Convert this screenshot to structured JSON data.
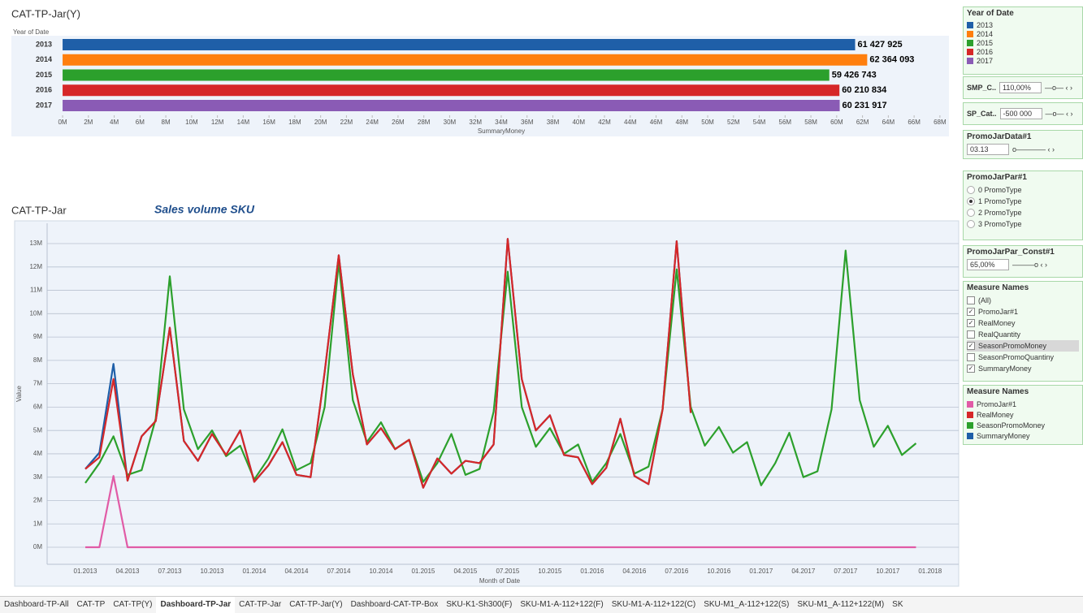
{
  "chart_data": [
    {
      "type": "bar",
      "title": "CAT-TP-Jar(Y)",
      "ylabel": "Year of Date",
      "xlabel": "SummaryMoney",
      "categories": [
        "2013",
        "2014",
        "2015",
        "2016",
        "2017"
      ],
      "values": [
        61427925,
        62364093,
        59426743,
        60210834,
        60231917
      ],
      "value_labels": [
        "61 427 925",
        "62 364 093",
        "59 426 743",
        "60 210 834",
        "60 231 917"
      ],
      "colors": [
        "#1f5fa8",
        "#ff7f0e",
        "#2ca02c",
        "#d62728",
        "#8a5bb5"
      ],
      "xlim": [
        -570000,
        68700000
      ],
      "xticks": [
        {
          "value": 0,
          "label": "0M"
        },
        {
          "value": 2000000,
          "label": "2M"
        },
        {
          "value": 4000000,
          "label": "4M"
        },
        {
          "value": 6000000,
          "label": "6M"
        },
        {
          "value": 8000000,
          "label": "8M"
        },
        {
          "value": 10000000,
          "label": "10M"
        },
        {
          "value": 12000000,
          "label": "12M"
        },
        {
          "value": 14000000,
          "label": "14M"
        },
        {
          "value": 16000000,
          "label": "16M"
        },
        {
          "value": 18000000,
          "label": "18M"
        },
        {
          "value": 20000000,
          "label": "20M"
        },
        {
          "value": 22000000,
          "label": "22M"
        },
        {
          "value": 24000000,
          "label": "24M"
        },
        {
          "value": 26000000,
          "label": "26M"
        },
        {
          "value": 28000000,
          "label": "28M"
        },
        {
          "value": 30000000,
          "label": "30M"
        },
        {
          "value": 32000000,
          "label": "32M"
        },
        {
          "value": 34000000,
          "label": "34M"
        },
        {
          "value": 36000000,
          "label": "36M"
        },
        {
          "value": 38000000,
          "label": "38M"
        },
        {
          "value": 40000000,
          "label": "40M"
        },
        {
          "value": 42000000,
          "label": "42M"
        },
        {
          "value": 44000000,
          "label": "44M"
        },
        {
          "value": 46000000,
          "label": "46M"
        },
        {
          "value": 48000000,
          "label": "48M"
        },
        {
          "value": 50000000,
          "label": "50M"
        },
        {
          "value": 52000000,
          "label": "52M"
        },
        {
          "value": 54000000,
          "label": "54M"
        },
        {
          "value": 56000000,
          "label": "56M"
        },
        {
          "value": 58000000,
          "label": "58M"
        },
        {
          "value": 60000000,
          "label": "60M"
        },
        {
          "value": 62000000,
          "label": "62M"
        },
        {
          "value": 64000000,
          "label": "64M"
        },
        {
          "value": 66000000,
          "label": "66M"
        },
        {
          "value": 68000000,
          "label": "68M"
        }
      ]
    },
    {
      "type": "line",
      "title": "CAT-TP-Jar",
      "subtitle": "Sales volume SKU",
      "ylabel": "Value",
      "xlabel": "Month of Date",
      "categories": [
        "01.2013",
        null,
        null,
        "04.2013",
        null,
        null,
        "07.2013",
        null,
        null,
        "10.2013",
        null,
        null,
        "01.2014",
        null,
        null,
        "04.2014",
        null,
        null,
        "07.2014",
        null,
        null,
        "10.2014",
        null,
        null,
        "01.2015",
        null,
        null,
        "04.2015",
        null,
        null,
        "07.2015",
        null,
        null,
        "10.2015",
        null,
        null,
        "01.2016",
        null,
        null,
        "04.2016",
        null,
        null,
        "07.2016",
        null,
        null,
        "10.2016",
        null,
        null,
        "01.2017",
        null,
        null,
        "04.2017",
        null,
        null,
        "07.2017",
        null,
        null,
        "10.2017",
        null,
        null,
        "01.2018"
      ],
      "ylim": [
        -730000,
        13870000
      ],
      "yticks": [
        {
          "value": 0,
          "label": "0M"
        },
        {
          "value": 1000000,
          "label": "1M"
        },
        {
          "value": 2000000,
          "label": "2M"
        },
        {
          "value": 3000000,
          "label": "3M"
        },
        {
          "value": 4000000,
          "label": "4M"
        },
        {
          "value": 5000000,
          "label": "5M"
        },
        {
          "value": 6000000,
          "label": "6M"
        },
        {
          "value": 7000000,
          "label": "7M"
        },
        {
          "value": 8000000,
          "label": "8M"
        },
        {
          "value": 9000000,
          "label": "9M"
        },
        {
          "value": 10000000,
          "label": "10M"
        },
        {
          "value": 11000000,
          "label": "11M"
        },
        {
          "value": 12000000,
          "label": "12M"
        },
        {
          "value": 13000000,
          "label": "13M"
        }
      ],
      "grid": true,
      "series": [
        {
          "name": "PromoJar#1",
          "color": "#e15ba6",
          "values": [
            0,
            0,
            3050000,
            0,
            0,
            0,
            0,
            0,
            0,
            0,
            0,
            0,
            0,
            0,
            0,
            0,
            0,
            0,
            0,
            0,
            0,
            0,
            0,
            0,
            0,
            0,
            0,
            0,
            0,
            0,
            0,
            0,
            0,
            0,
            0,
            0,
            0,
            0,
            0,
            0,
            0,
            0,
            0,
            0,
            0,
            0,
            0,
            0,
            0,
            0,
            0,
            0,
            0,
            0,
            0,
            0,
            0,
            0,
            0,
            0,
            null
          ]
        },
        {
          "name": "RealMoney",
          "color": "#d62728",
          "values": [
            3350000,
            3850000,
            7200000,
            2850000,
            4750000,
            5400000,
            9400000,
            4550000,
            3700000,
            4850000,
            3950000,
            5000000,
            2800000,
            3500000,
            4500000,
            3100000,
            3000000,
            7500000,
            12500000,
            7400000,
            4400000,
            5100000,
            4200000,
            4600000,
            2550000,
            3800000,
            3150000,
            3700000,
            3600000,
            4400000,
            13200000,
            7200000,
            5000000,
            5650000,
            3950000,
            3850000,
            2700000,
            3400000,
            5500000,
            3050000,
            2700000,
            5900000,
            13100000,
            5750000,
            null,
            null,
            null,
            null,
            null,
            null,
            null,
            null,
            null,
            null,
            null,
            null,
            null,
            null,
            null,
            null,
            null
          ]
        },
        {
          "name": "SeasonPromoMoney",
          "color": "#2ca02c",
          "values": [
            2750000,
            3600000,
            4750000,
            3100000,
            3300000,
            5500000,
            11600000,
            5900000,
            4200000,
            5000000,
            3900000,
            4350000,
            2900000,
            3800000,
            5050000,
            3300000,
            3600000,
            6000000,
            12200000,
            6300000,
            4500000,
            5350000,
            4200000,
            4600000,
            2800000,
            3600000,
            4850000,
            3100000,
            3350000,
            5800000,
            11800000,
            6000000,
            4300000,
            5100000,
            4000000,
            4400000,
            2800000,
            3600000,
            4850000,
            3150000,
            3450000,
            5900000,
            11900000,
            6000000,
            4350000,
            5150000,
            4050000,
            4500000,
            2650000,
            3600000,
            4900000,
            3000000,
            3250000,
            5900000,
            12700000,
            6300000,
            4300000,
            5200000,
            3950000,
            4450000,
            null
          ]
        },
        {
          "name": "SummaryMoney",
          "color": "#1f5fa8",
          "values": [
            3350000,
            4050000,
            7850000,
            2850000,
            4750000,
            5400000,
            9400000,
            4550000,
            3700000,
            4850000,
            3950000,
            5000000,
            2800000,
            3500000,
            4500000,
            3100000,
            3000000,
            7500000,
            12500000,
            7400000,
            4400000,
            5100000,
            4200000,
            4600000,
            2550000,
            3800000,
            3150000,
            3700000,
            3600000,
            4400000,
            13200000,
            7200000,
            5000000,
            5650000,
            3950000,
            3850000,
            2700000,
            3400000,
            5500000,
            3050000,
            2700000,
            5900000,
            13100000,
            5750000,
            null,
            null,
            null,
            null,
            null,
            null,
            null,
            null,
            null,
            null,
            null,
            null,
            null,
            null,
            null,
            null,
            null
          ]
        }
      ]
    }
  ],
  "sidebar": {
    "year_legend_title": "Year of Date",
    "params": [
      {
        "label": "SMP_C..",
        "value": "110,00%"
      },
      {
        "label": "SP_Cat..",
        "value": "-500 000"
      }
    ],
    "promo_data": {
      "title": "PromoJarData#1",
      "value": "03.13"
    },
    "promo_par": {
      "title": "PromoJarPar#1",
      "options": [
        {
          "label": "0 PromoType",
          "checked": false
        },
        {
          "label": "1 PromoType",
          "checked": true
        },
        {
          "label": "2 PromoType",
          "checked": false
        },
        {
          "label": "3 PromoType",
          "checked": false
        }
      ]
    },
    "promo_const": {
      "title": "PromoJarPar_Const#1",
      "value": "65,00%"
    },
    "measure_filter": {
      "title": "Measure Names",
      "items": [
        {
          "label": "(All)",
          "checked": false
        },
        {
          "label": "PromoJar#1",
          "checked": true
        },
        {
          "label": "RealMoney",
          "checked": true
        },
        {
          "label": "RealQuantity",
          "checked": false
        },
        {
          "label": "SeasonPromoMoney",
          "checked": true
        },
        {
          "label": "SeasonPromoQuantiny",
          "checked": false
        },
        {
          "label": "SummaryMoney",
          "checked": true
        }
      ]
    },
    "measure_legend_title": "Measure Names"
  },
  "tabs": {
    "items": [
      "Dashboard-TP-All",
      "CAT-TP",
      "CAT-TP(Y)",
      "Dashboard-TP-Jar",
      "CAT-TP-Jar",
      "CAT-TP-Jar(Y)",
      "Dashboard-CAT-TP-Box",
      "SKU-K1-Sh300(F)",
      "SKU-M1-A-112+122(F)",
      "SKU-M1-A-112+122(C)",
      "SKU-M1_A-112+122(S)",
      "SKU-M1_A-112+122(M)",
      "SK"
    ],
    "active": 3
  }
}
